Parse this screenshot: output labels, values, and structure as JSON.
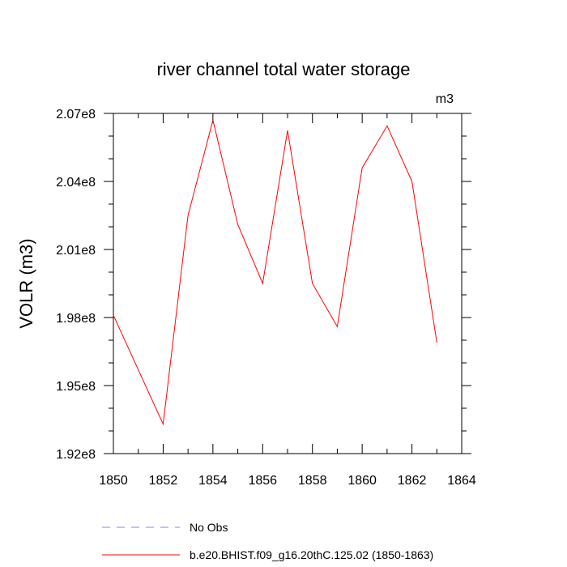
{
  "chart_data": {
    "type": "line",
    "title": "river channel total water storage",
    "units_label": "m3",
    "ylabel": "VOLR  (m3)",
    "xlabel": "",
    "xlim": [
      1850,
      1864
    ],
    "ylim": [
      192000000,
      207000000
    ],
    "x_ticks": [
      1850,
      1852,
      1854,
      1856,
      1858,
      1860,
      1862,
      1864
    ],
    "y_ticks": [
      {
        "value": 192000000,
        "label": "1.92e8"
      },
      {
        "value": 195000000,
        "label": "1.95e8"
      },
      {
        "value": 198000000,
        "label": "1.98e8"
      },
      {
        "value": 201000000,
        "label": "2.01e8"
      },
      {
        "value": 204000000,
        "label": "2.04e8"
      },
      {
        "value": 207000000,
        "label": "2.07e8"
      }
    ],
    "series": [
      {
        "name": "b.e20.BHIST.f09_g16.20thC.125.02 (1850-1863)",
        "color": "#ff0000",
        "style": "solid",
        "x": [
          1850,
          1851,
          1852,
          1853,
          1854,
          1855,
          1856,
          1857,
          1858,
          1859,
          1860,
          1861,
          1862,
          1863
        ],
        "values": [
          198100000,
          195700000,
          193300000,
          202500000,
          206700000,
          202100000,
          199500000,
          206250000,
          199500000,
          197600000,
          204600000,
          206450000,
          204000000,
          196900000
        ]
      }
    ],
    "legend": [
      {
        "label": "No Obs",
        "color": "#8080ff",
        "style": "dashed"
      },
      {
        "label": "b.e20.BHIST.f09_g16.20thC.125.02 (1850-1863)",
        "color": "#ff0000",
        "style": "solid"
      }
    ]
  }
}
